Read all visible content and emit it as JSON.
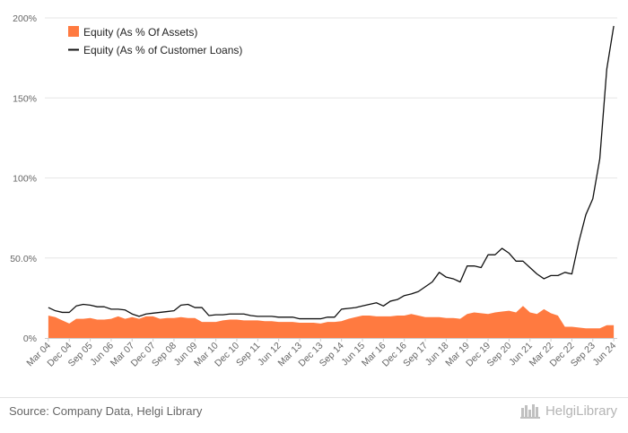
{
  "chart_data": {
    "type": "area",
    "x_tick_labels": [
      "Mar 04",
      "Dec 04",
      "Sep 05",
      "Jun 06",
      "Mar 07",
      "Dec 07",
      "Sep 08",
      "Jun 09",
      "Mar 10",
      "Dec 10",
      "Sep 11",
      "Jun 12",
      "Mar 13",
      "Dec 13",
      "Sep 14",
      "Jun 15",
      "Mar 16",
      "Dec 16",
      "Sep 17",
      "Jun 18",
      "Mar 19",
      "Dec 19",
      "Sep 20",
      "Jun 21",
      "Mar 22",
      "Dec 22",
      "Sep 23",
      "Jun 24"
    ],
    "y_ticks": [
      "0%",
      "50.0%",
      "100%",
      "150%",
      "200%"
    ],
    "ylim": [
      0,
      200
    ],
    "grid": true,
    "legend_position": "top-left",
    "series": [
      {
        "name": "Equity (As % Of Assets)",
        "type": "area",
        "color": "#ff7a40",
        "values": [
          14,
          13,
          11,
          9,
          12,
          12,
          12.5,
          11.5,
          11.5,
          12,
          13.5,
          12,
          13,
          12,
          13.5,
          13.5,
          12,
          12.5,
          12.5,
          13,
          12.5,
          12.5,
          10,
          10,
          10,
          11,
          11.5,
          11.5,
          11,
          11,
          11,
          10.5,
          10.5,
          10,
          10,
          10,
          9.5,
          9.5,
          9.5,
          9,
          10,
          10,
          10.5,
          12,
          13,
          14,
          14,
          13.5,
          13.5,
          13.5,
          14,
          14,
          15,
          14,
          13,
          13,
          13,
          12.5,
          12.5,
          12,
          15,
          16,
          15.5,
          15,
          16,
          16.5,
          17,
          16,
          20,
          16,
          15,
          18,
          15.5,
          14,
          7,
          7,
          6.5,
          6,
          6,
          6,
          8,
          8
        ]
      },
      {
        "name": "Equity (As % of Customer Loans)",
        "type": "line",
        "color": "#111111",
        "values": [
          19,
          17,
          16,
          16,
          20,
          21,
          20.5,
          19.5,
          19.5,
          18,
          18,
          17.5,
          15,
          13.5,
          15,
          15.5,
          16,
          16.5,
          17,
          20.5,
          21,
          19,
          19,
          14,
          14.5,
          14.5,
          15,
          15,
          15,
          14,
          13.5,
          13.5,
          13.5,
          13,
          13,
          13,
          12,
          12,
          12,
          12,
          13,
          13,
          18,
          18.5,
          19,
          20,
          21,
          22,
          20,
          23,
          24,
          26.5,
          27.5,
          29,
          32,
          35,
          41,
          38,
          37,
          35,
          45,
          45,
          44,
          52,
          52,
          56,
          53,
          48,
          48,
          44,
          40,
          37,
          39,
          39,
          41,
          40,
          60,
          77,
          87,
          112,
          168,
          195
        ]
      }
    ]
  },
  "footer": {
    "source": "Source: Company Data, Helgi Library",
    "brand": "HelgiLibrary"
  }
}
